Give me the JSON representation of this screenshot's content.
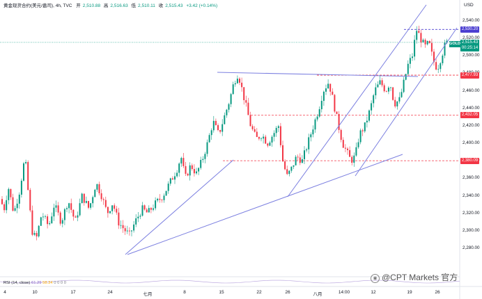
{
  "header": {
    "symbol": "黄金现货合约(美元/盎司), 4h, TVC",
    "open_label": "开",
    "open": "2,510.88",
    "high_label": "高",
    "high": "2,516.63",
    "low_label": "低",
    "low": "2,510.11",
    "close_label": "收",
    "close": "2,515.43",
    "change": "+3.42 (+0.14%)"
  },
  "axis": {
    "currency": "USD",
    "y_ticks": [
      "2,540.00",
      "2,520.00",
      "2,500.00",
      "2,480.00",
      "2,460.00",
      "2,440.00",
      "2,420.00",
      "2,400.00",
      "2,380.00",
      "2,360.00",
      "2,340.00",
      "2,320.00",
      "2,300.00",
      "2,280.00"
    ],
    "x_ticks": [
      "4",
      "10",
      "17",
      "24",
      "七月",
      "8",
      "15",
      "22",
      "26",
      "八月",
      "14:00",
      "12",
      "19",
      "26"
    ]
  },
  "levels": [
    {
      "label": "2,530.20",
      "color": "#4c3fd1",
      "value": 2530.2
    },
    {
      "label": "2,477.93",
      "color": "#f23645",
      "value": 2477.93
    },
    {
      "label": "2,432.05",
      "color": "#f23645",
      "value": 2432.05
    },
    {
      "label": "2,380.09",
      "color": "#f23645",
      "value": 2380.09
    }
  ],
  "last_price": {
    "symbol": "GOLD",
    "price": "2,515.43",
    "countdown": "00:25:14",
    "value": 2515.43
  },
  "rsi": {
    "label": "RSI (14, close)",
    "v1": "61.29",
    "v2": "58.34",
    "zeros": "0  0  0  0"
  },
  "watermark": "@CPT Markets 官方"
}
